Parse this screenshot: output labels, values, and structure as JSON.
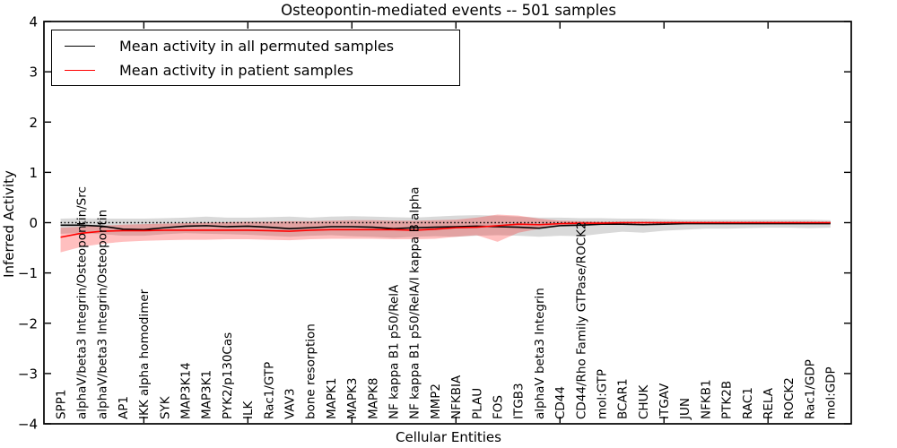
{
  "title": "Osteopontin-mediated events -- 501 samples",
  "legend": {
    "items": [
      {
        "label": "Mean activity in all permuted samples",
        "color": "#000000"
      },
      {
        "label": "Mean activity in patient samples",
        "color": "#ff0000"
      }
    ]
  },
  "chart_data": {
    "type": "line",
    "title": "Osteopontin-mediated events -- 501 samples",
    "xlabel": "Cellular Entities",
    "ylabel": "Inferred Activity",
    "ylim": [
      -4,
      4
    ],
    "yticks": [
      4,
      3,
      2,
      1,
      0,
      -1,
      -2,
      -3,
      -4
    ],
    "xtick_index_positions": [
      4,
      9,
      14,
      19,
      24,
      29,
      34
    ],
    "grid": false,
    "legend_position": "upper left",
    "zero_line": {
      "y": 0,
      "style": "dotted",
      "color": "#000000"
    },
    "categories": [
      "SPP1",
      "alphaV/beta3 Integrin/Osteopontin/Src",
      "alphaV/beta3 Integrin/Osteopontin",
      "AP1",
      "IKK alpha homodimer",
      "SYK",
      "MAP3K14",
      "MAP3K1",
      "PYK2/p130Cas",
      "ILK",
      "Rac1/GTP",
      "VAV3",
      "bone resorption",
      "MAPK1",
      "MAPK3",
      "MAPK8",
      "NF kappa B1 p50/RelA",
      "NF kappa B1 p50/RelA/I kappa B alpha",
      "MMP2",
      "NFKBIA",
      "PLAU",
      "FOS",
      "ITGB3",
      "alphaV beta3 Integrin",
      "CD44",
      "CD44/Rho Family GTPase/ROCK2",
      "mol:GTP",
      "BCAR1",
      "CHUK",
      "ITGAV",
      "JUN",
      "NFKB1",
      "PTK2B",
      "RAC1",
      "RELA",
      "ROCK2",
      "Rac1/GDP",
      "mol:GDP"
    ],
    "series": [
      {
        "name": "Mean activity in all permuted samples",
        "color": "#000000",
        "values": [
          -0.05,
          -0.05,
          -0.07,
          -0.13,
          -0.14,
          -0.1,
          -0.07,
          -0.06,
          -0.08,
          -0.07,
          -0.09,
          -0.12,
          -0.1,
          -0.08,
          -0.08,
          -0.09,
          -0.12,
          -0.1,
          -0.09,
          -0.08,
          -0.07,
          -0.08,
          -0.09,
          -0.11,
          -0.06,
          -0.05,
          -0.03,
          -0.03,
          -0.04,
          -0.03,
          -0.02,
          -0.02,
          -0.02,
          -0.02,
          -0.02,
          -0.02,
          -0.02,
          -0.02
        ]
      },
      {
        "name": "Mean activity in patient samples",
        "color": "#ff0000",
        "values": [
          -0.29,
          -0.21,
          -0.17,
          -0.16,
          -0.16,
          -0.15,
          -0.15,
          -0.15,
          -0.15,
          -0.15,
          -0.16,
          -0.17,
          -0.15,
          -0.14,
          -0.14,
          -0.14,
          -0.14,
          -0.15,
          -0.13,
          -0.1,
          -0.09,
          -0.06,
          -0.03,
          -0.04,
          -0.02,
          -0.01,
          -0.01,
          0.0,
          0.0,
          0.0,
          0.0,
          0.0,
          0.0,
          0.0,
          0.0,
          0.0,
          0.0,
          0.0
        ]
      }
    ],
    "bands": [
      {
        "name": "permuted-range",
        "color": "#000000",
        "opacity": 0.15,
        "lower": [
          -0.22,
          -0.21,
          -0.23,
          -0.26,
          -0.26,
          -0.23,
          -0.21,
          -0.22,
          -0.23,
          -0.24,
          -0.26,
          -0.28,
          -0.26,
          -0.25,
          -0.27,
          -0.28,
          -0.3,
          -0.28,
          -0.27,
          -0.28,
          -0.26,
          -0.25,
          -0.26,
          -0.28,
          -0.26,
          -0.27,
          -0.22,
          -0.18,
          -0.2,
          -0.16,
          -0.14,
          -0.12,
          -0.12,
          -0.11,
          -0.1,
          -0.1,
          -0.11,
          -0.1
        ],
        "upper": [
          0.08,
          0.09,
          0.08,
          0.08,
          0.08,
          0.09,
          0.1,
          0.12,
          0.1,
          0.1,
          0.11,
          0.12,
          0.1,
          0.12,
          0.13,
          0.12,
          0.11,
          0.1,
          0.12,
          0.14,
          0.15,
          0.14,
          0.12,
          0.1,
          0.1,
          0.09,
          0.09,
          0.08,
          0.08,
          0.07,
          0.06,
          0.06,
          0.06,
          0.06,
          0.06,
          0.06,
          0.06,
          0.05
        ]
      },
      {
        "name": "patient-range",
        "color": "#ff0000",
        "opacity": 0.25,
        "lower": [
          -0.59,
          -0.48,
          -0.42,
          -0.38,
          -0.36,
          -0.35,
          -0.34,
          -0.34,
          -0.33,
          -0.33,
          -0.34,
          -0.35,
          -0.33,
          -0.32,
          -0.32,
          -0.32,
          -0.33,
          -0.33,
          -0.32,
          -0.28,
          -0.25,
          -0.38,
          -0.2,
          -0.12,
          -0.06,
          -0.04,
          -0.03,
          -0.03,
          -0.03,
          -0.02,
          -0.02,
          -0.02,
          -0.02,
          -0.02,
          -0.02,
          -0.02,
          -0.02,
          -0.03
        ],
        "upper": [
          -0.1,
          -0.08,
          -0.06,
          -0.04,
          -0.03,
          -0.02,
          -0.01,
          0.0,
          0.01,
          0.02,
          0.02,
          0.03,
          0.03,
          0.04,
          0.05,
          0.05,
          0.04,
          0.04,
          0.05,
          0.06,
          0.1,
          0.16,
          0.14,
          0.08,
          0.04,
          0.03,
          0.02,
          0.02,
          0.02,
          0.02,
          0.02,
          0.02,
          0.02,
          0.02,
          0.02,
          0.02,
          0.02,
          0.02
        ]
      }
    ]
  }
}
